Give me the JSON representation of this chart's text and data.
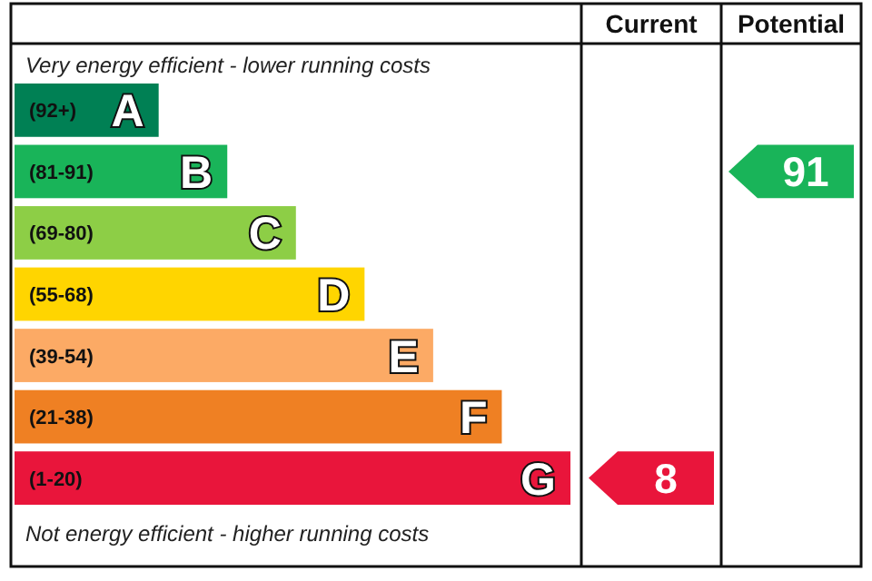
{
  "chart_data": {
    "type": "other",
    "data_labels": true,
    "categories": [
      "(92+)",
      "(81-91)",
      "(69-80)",
      "(55-68)",
      "(39-54)",
      "(21-38)",
      "(1-20)"
    ],
    "value_labels": [
      "A",
      "B",
      "C",
      "D",
      "E",
      "F",
      "G"
    ],
    "colors": [
      "#008054",
      "#19b459",
      "#8dce46",
      "#ffd500",
      "#fcaa65",
      "#ef8023",
      "#e9153b"
    ],
    "series": [
      {
        "values": [
          null,
          null,
          null,
          null,
          null,
          null,
          8
        ]
      },
      {
        "values": [
          null,
          91,
          null,
          null,
          null,
          null,
          null
        ]
      }
    ],
    "annotations": [
      "Very energy efficient - lower running costs",
      "Not energy efficient - higher running costs",
      "Current",
      "Potential"
    ]
  }
}
